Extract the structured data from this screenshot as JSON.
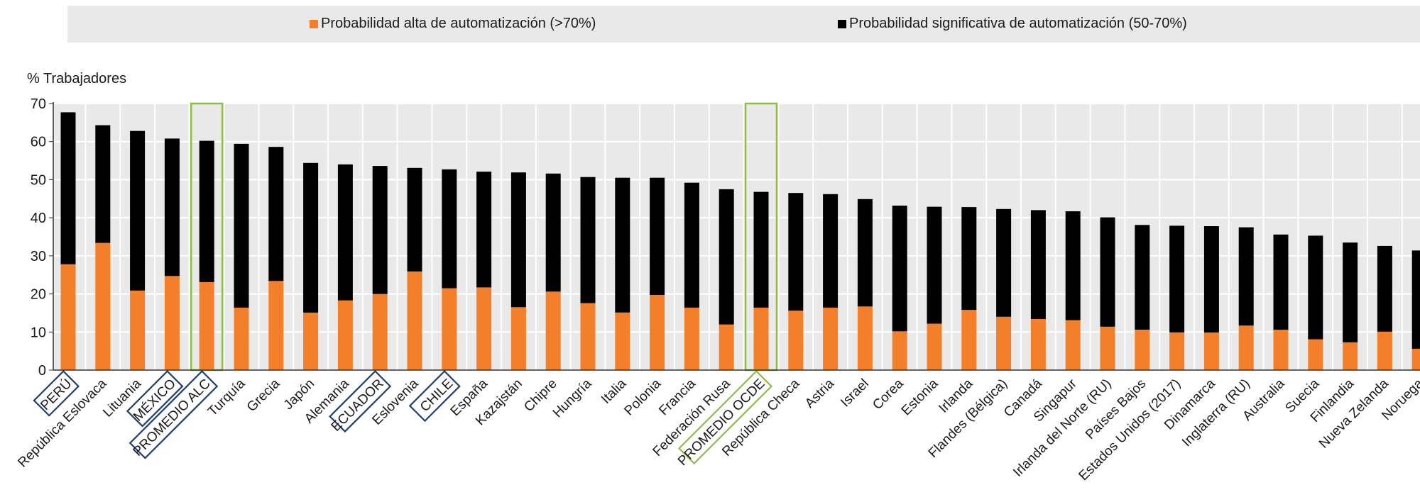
{
  "chart_data": {
    "type": "bar",
    "stacked": true,
    "title": "",
    "ylabel": "% Trabajadores",
    "xlabel": "",
    "ylim": [
      0,
      70
    ],
    "yticks": [
      0,
      10,
      20,
      30,
      40,
      50,
      60,
      70
    ],
    "grid": true,
    "legend_position": "top",
    "categories": [
      "PERÚ",
      "República Eslovaca",
      "Lituania",
      "MÉXICO",
      "PROMEDIO ALC",
      "Turquía",
      "Grecia",
      "Japón",
      "Alemania",
      "ECUADOR",
      "Eslovenia",
      "CHILE",
      "España",
      "Kazajstán",
      "Chipre",
      "Hungría",
      "Italia",
      "Polonia",
      "Francia",
      "Federación Rusa",
      "PROMEDIO OCDE",
      "República Checa",
      "Astria",
      "Israel",
      "Corea",
      "Estonia",
      "Irlanda",
      "Flandes (Bélgica)",
      "Canadá",
      "Singapur",
      "Irlanda del Norte (RU)",
      "Países Bajos",
      "Estados Unidos (2017)",
      "Dinamarca",
      "Inglaterra (RU)",
      "Australia",
      "Suecia",
      "Finlandia",
      "Nueva Zelanda",
      "Noruega"
    ],
    "series": [
      {
        "name": "Probabilidad alta de automatización (>70%)",
        "color": "#f47f2a",
        "values": [
          27.8,
          33.4,
          20.9,
          24.7,
          23.1,
          16.4,
          23.4,
          15.1,
          18.3,
          20.0,
          25.9,
          21.5,
          21.7,
          16.5,
          20.6,
          17.6,
          15.1,
          19.7,
          16.4,
          12.0,
          16.4,
          15.6,
          16.4,
          16.7,
          10.2,
          12.2,
          15.8,
          14.0,
          13.4,
          13.1,
          11.4,
          10.6,
          9.9,
          9.9,
          11.7,
          10.6,
          8.1,
          7.3,
          10.1,
          5.6
        ]
      },
      {
        "name": "Probabilidad significativa de automatización (50-70%)",
        "color": "#000000",
        "values": [
          39.9,
          30.9,
          41.9,
          36.1,
          37.1,
          43.0,
          35.2,
          39.3,
          35.7,
          33.6,
          27.2,
          31.2,
          30.4,
          35.4,
          31.0,
          33.1,
          35.4,
          30.8,
          32.8,
          35.5,
          30.4,
          30.9,
          29.8,
          28.2,
          33.0,
          30.7,
          27.0,
          28.3,
          28.6,
          28.6,
          28.7,
          27.5,
          28.0,
          27.9,
          25.8,
          25.0,
          27.2,
          26.2,
          22.5,
          25.8
        ]
      }
    ],
    "highlights": {
      "blue_boxes": [
        "PERÚ",
        "MÉXICO",
        "PROMEDIO ALC",
        "ECUADOR",
        "CHILE"
      ],
      "green_boxes": [
        "PROMEDIO ALC",
        "PROMEDIO OCDE"
      ],
      "blue_color": "#1f3d6e",
      "green_color": "#8cbf3f"
    },
    "colors": {
      "plot_background": "#e9e9e9",
      "legend_background": "#e9e9e9",
      "gridline": "#ffffff"
    }
  }
}
